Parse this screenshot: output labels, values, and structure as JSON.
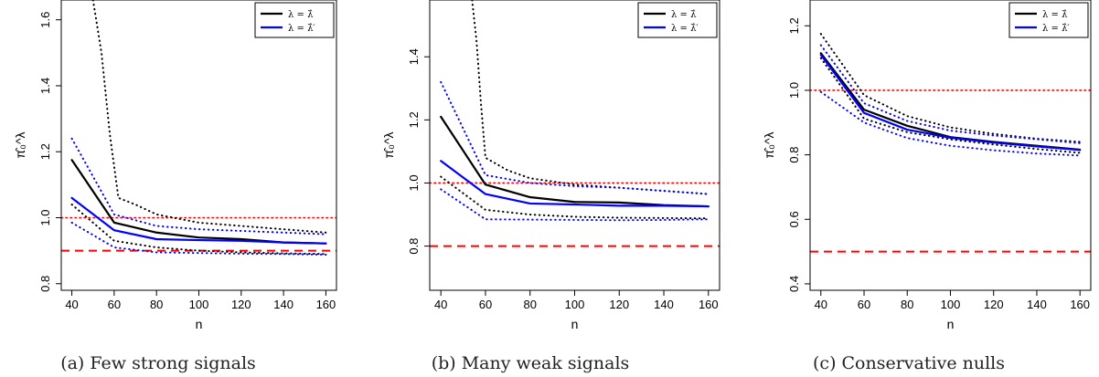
{
  "chart_data": [
    {
      "type": "line",
      "title": "(a) Few strong signals",
      "xlabel": "n",
      "ylabel": "π̂₀^λ",
      "x": [
        40,
        60,
        80,
        100,
        120,
        140,
        160
      ],
      "xlim": [
        35,
        165
      ],
      "ylim": [
        0.78,
        1.66
      ],
      "yticks": [
        0.8,
        1.0,
        1.2,
        1.4,
        1.6
      ],
      "xticks": [
        40,
        60,
        80,
        100,
        120,
        140,
        160
      ],
      "legend": {
        "position": "top-right",
        "entries": [
          "λ = λ̂",
          "λ = λ̂′"
        ]
      },
      "series": [
        {
          "name": "λ = λ̂",
          "color": "#000000",
          "style": "solid",
          "values": [
            1.175,
            0.985,
            0.955,
            0.94,
            0.935,
            0.925,
            0.922
          ]
        },
        {
          "name": "λ = λ̂′",
          "color": "#0000ff",
          "style": "solid",
          "values": [
            1.06,
            0.962,
            0.935,
            0.932,
            0.93,
            0.925,
            0.922
          ]
        },
        {
          "color": "#000000",
          "style": "dotted",
          "x": [
            50,
            54,
            58,
            62,
            70,
            80,
            100,
            120,
            140,
            160
          ],
          "values": [
            1.66,
            1.5,
            1.25,
            1.06,
            1.04,
            1.01,
            0.985,
            0.975,
            0.965,
            0.955
          ]
        },
        {
          "color": "#000000",
          "style": "dotted",
          "values": [
            1.04,
            0.93,
            0.91,
            0.9,
            0.895,
            0.892,
            0.89
          ]
        },
        {
          "color": "#0000ff",
          "style": "dotted",
          "values": [
            1.24,
            1.01,
            0.975,
            0.965,
            0.96,
            0.955,
            0.95
          ]
        },
        {
          "color": "#0000ff",
          "style": "dotted",
          "values": [
            0.985,
            0.91,
            0.895,
            0.893,
            0.891,
            0.89,
            0.888
          ]
        }
      ],
      "hlines": [
        {
          "y": 1.0,
          "color": "#ff0000",
          "style": "dotted"
        },
        {
          "y": 0.9,
          "color": "#ff0000",
          "style": "dashed"
        }
      ]
    },
    {
      "type": "line",
      "title": "(b) Many weak signals",
      "xlabel": "n",
      "ylabel": "π̂₀^λ",
      "x": [
        40,
        60,
        80,
        100,
        120,
        140,
        160
      ],
      "xlim": [
        35,
        165
      ],
      "ylim": [
        0.66,
        1.58
      ],
      "yticks": [
        0.8,
        1.0,
        1.2,
        1.4
      ],
      "xticks": [
        40,
        60,
        80,
        100,
        120,
        140,
        160
      ],
      "legend": {
        "position": "top-right",
        "entries": [
          "λ = λ̂",
          "λ = λ̂′"
        ]
      },
      "series": [
        {
          "name": "λ = λ̂",
          "color": "#000000",
          "style": "solid",
          "values": [
            1.21,
            0.995,
            0.955,
            0.94,
            0.938,
            0.93,
            0.926
          ]
        },
        {
          "name": "λ = λ̂′",
          "color": "#0000ff",
          "style": "solid",
          "values": [
            1.07,
            0.965,
            0.935,
            0.932,
            0.928,
            0.928,
            0.926
          ]
        },
        {
          "color": "#000000",
          "style": "dotted",
          "x": [
            54,
            56,
            58,
            60,
            70,
            80,
            100,
            120,
            140,
            160
          ],
          "values": [
            1.58,
            1.45,
            1.25,
            1.08,
            1.04,
            1.015,
            0.995,
            0.985,
            0.975,
            0.965
          ]
        },
        {
          "color": "#000000",
          "style": "dotted",
          "values": [
            1.02,
            0.915,
            0.9,
            0.893,
            0.89,
            0.889,
            0.888
          ]
        },
        {
          "color": "#0000ff",
          "style": "dotted",
          "values": [
            1.32,
            1.025,
            1.0,
            0.99,
            0.985,
            0.975,
            0.965
          ]
        },
        {
          "color": "#0000ff",
          "style": "dotted",
          "values": [
            0.98,
            0.885,
            0.884,
            0.883,
            0.882,
            0.883,
            0.885
          ]
        }
      ],
      "hlines": [
        {
          "y": 1.0,
          "color": "#ff0000",
          "style": "dotted"
        },
        {
          "y": 0.8,
          "color": "#ff0000",
          "style": "dashed"
        }
      ]
    },
    {
      "type": "line",
      "title": "(c) Conservative nulls",
      "xlabel": "n",
      "ylabel": "π̂₀^λ",
      "x": [
        40,
        60,
        80,
        100,
        120,
        140,
        160
      ],
      "xlim": [
        35,
        165
      ],
      "ylim": [
        0.38,
        1.28
      ],
      "yticks": [
        0.4,
        0.6,
        0.8,
        1.0,
        1.2
      ],
      "xticks": [
        40,
        60,
        80,
        100,
        120,
        140,
        160
      ],
      "legend": {
        "position": "top-right",
        "entries": [
          "λ = λ̂",
          "λ = λ̂′"
        ]
      },
      "series": [
        {
          "name": "λ = λ̂",
          "color": "#000000",
          "style": "solid",
          "values": [
            1.115,
            0.94,
            0.89,
            0.855,
            0.84,
            0.828,
            0.816
          ]
        },
        {
          "name": "λ = λ̂′",
          "color": "#0000ff",
          "style": "solid",
          "values": [
            1.11,
            0.93,
            0.878,
            0.853,
            0.838,
            0.826,
            0.815
          ]
        },
        {
          "color": "#000000",
          "style": "dotted",
          "values": [
            1.175,
            0.985,
            0.92,
            0.885,
            0.865,
            0.85,
            0.84
          ]
        },
        {
          "color": "#000000",
          "style": "dotted",
          "values": [
            1.1,
            0.912,
            0.87,
            0.848,
            0.832,
            0.818,
            0.806
          ]
        },
        {
          "color": "#0000ff",
          "style": "dotted",
          "values": [
            1.14,
            0.96,
            0.905,
            0.875,
            0.86,
            0.848,
            0.836
          ]
        },
        {
          "color": "#0000ff",
          "style": "dotted",
          "values": [
            0.995,
            0.9,
            0.852,
            0.828,
            0.814,
            0.804,
            0.798
          ]
        }
      ],
      "hlines": [
        {
          "y": 1.0,
          "color": "#ff0000",
          "style": "dotted"
        },
        {
          "y": 0.5,
          "color": "#ff0000",
          "style": "dashed"
        }
      ]
    }
  ]
}
